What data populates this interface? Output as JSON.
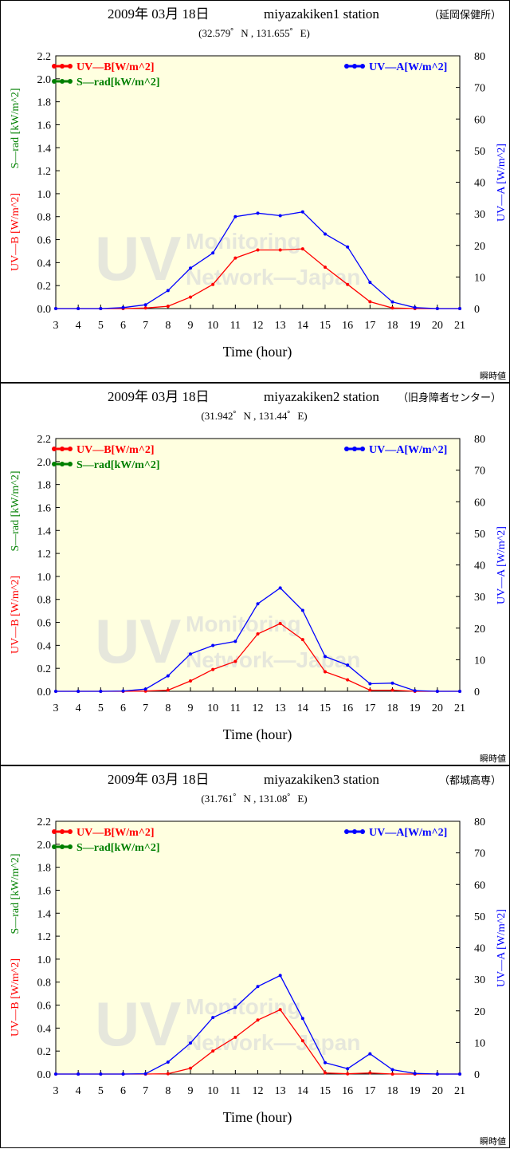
{
  "colors": {
    "uvb": "#ff0000",
    "srad": "#008000",
    "uva": "#0000ff",
    "plot_bg": "#ffffe0"
  },
  "watermark": {
    "big": "UV",
    "line1": "Monitoring",
    "line2": "Network—Japan"
  },
  "chart_data": [
    {
      "type": "line",
      "date": "2009年 03月 18日",
      "station": "miyazakiken1 station",
      "station_jp": "（延岡保健所）",
      "coords": "(32.579゜N , 131.655゜E)",
      "xlabel": "Time (hour)",
      "ylabel_left_uvb": "UV—B [W/m^2]",
      "ylabel_left_srad": "S—rad [kW/m^2]",
      "ylabel_right": "UV—A [W/m^2]",
      "legend_uvb": "UV—B[W/m^2]",
      "legend_srad": "S—rad[kW/m^2]",
      "legend_uva": "UV—A[W/m^2]",
      "footnote": "瞬時値",
      "x": [
        3,
        4,
        5,
        6,
        7,
        8,
        9,
        10,
        11,
        12,
        13,
        14,
        15,
        16,
        17,
        18,
        19,
        20,
        21
      ],
      "xlim": [
        3,
        21
      ],
      "ylim_left": [
        0,
        2.2
      ],
      "ylim_right": [
        0,
        80
      ],
      "left_ticks": [
        "0.0",
        "0.2",
        "0.4",
        "0.6",
        "0.8",
        "1.0",
        "1.2",
        "1.4",
        "1.6",
        "1.8",
        "2.0",
        "2.2"
      ],
      "right_ticks": [
        "0",
        "10",
        "20",
        "30",
        "40",
        "50",
        "60",
        "70",
        "80"
      ],
      "series": [
        {
          "name": "UV—B[W/m^2]",
          "axis": "left",
          "color": "#ff0000",
          "values": [
            0,
            0,
            0,
            0,
            0.005,
            0.02,
            0.1,
            0.21,
            0.44,
            0.51,
            0.51,
            0.52,
            0.36,
            0.21,
            0.06,
            0.005,
            0,
            0,
            0
          ]
        },
        {
          "name": "UV—A[W/m^2]",
          "axis": "right",
          "color": "#0000ff",
          "values": [
            0,
            0,
            0,
            0.3,
            1.2,
            5.7,
            12.8,
            17.6,
            29.1,
            30.2,
            29.4,
            30.6,
            23.6,
            19.5,
            8.3,
            2.1,
            0.3,
            0,
            0
          ]
        }
      ]
    },
    {
      "type": "line",
      "date": "2009年 03月 18日",
      "station": "miyazakiken2 station",
      "station_jp": "（旧身障者センター）",
      "coords": "(31.942゜N , 131.44゜E)",
      "xlabel": "Time (hour)",
      "ylabel_left_uvb": "UV—B [W/m^2]",
      "ylabel_left_srad": "S—rad [kW/m^2]",
      "ylabel_right": "UV—A [W/m^2]",
      "legend_uvb": "UV—B[W/m^2]",
      "legend_srad": "S—rad[kW/m^2]",
      "legend_uva": "UV—A[W/m^2]",
      "footnote": "瞬時値",
      "x": [
        3,
        4,
        5,
        6,
        7,
        8,
        9,
        10,
        11,
        12,
        13,
        14,
        15,
        16,
        17,
        18,
        19,
        20,
        21
      ],
      "xlim": [
        3,
        21
      ],
      "ylim_left": [
        0,
        2.2
      ],
      "ylim_right": [
        0,
        80
      ],
      "left_ticks": [
        "0.0",
        "0.2",
        "0.4",
        "0.6",
        "0.8",
        "1.0",
        "1.2",
        "1.4",
        "1.6",
        "1.8",
        "2.0",
        "2.2"
      ],
      "right_ticks": [
        "0",
        "10",
        "20",
        "30",
        "40",
        "50",
        "60",
        "70",
        "80"
      ],
      "series": [
        {
          "name": "UV—B[W/m^2]",
          "axis": "left",
          "color": "#ff0000",
          "values": [
            0,
            0,
            0,
            0,
            0.002,
            0.01,
            0.09,
            0.19,
            0.26,
            0.5,
            0.59,
            0.45,
            0.17,
            0.1,
            0.01,
            0.01,
            0,
            0,
            0
          ]
        },
        {
          "name": "UV—A[W/m^2]",
          "axis": "right",
          "color": "#0000ff",
          "values": [
            0,
            0,
            0,
            0.1,
            0.7,
            4.9,
            11.8,
            14.5,
            15.8,
            27.7,
            32.7,
            25.6,
            11.0,
            8.3,
            2.4,
            2.6,
            0.2,
            0,
            0
          ]
        }
      ]
    },
    {
      "type": "line",
      "date": "2009年 03月 18日",
      "station": "miyazakiken3 station",
      "station_jp": "（都城高専）",
      "coords": "(31.761゜N , 131.08゜E)",
      "xlabel": "Time (hour)",
      "ylabel_left_uvb": "UV—B [W/m^2]",
      "ylabel_left_srad": "S—rad [kW/m^2]",
      "ylabel_right": "UV—A [W/m^2]",
      "legend_uvb": "UV—B[W/m^2]",
      "legend_srad": "S—rad[kW/m^2]",
      "legend_uva": "UV—A[W/m^2]",
      "footnote": "瞬時値",
      "x": [
        3,
        4,
        5,
        6,
        7,
        8,
        9,
        10,
        11,
        12,
        13,
        14,
        15,
        16,
        17,
        18,
        19,
        20,
        21
      ],
      "xlim": [
        3,
        21
      ],
      "ylim_left": [
        0,
        2.2
      ],
      "ylim_right": [
        0,
        80
      ],
      "left_ticks": [
        "0.0",
        "0.2",
        "0.4",
        "0.6",
        "0.8",
        "1.0",
        "1.2",
        "1.4",
        "1.6",
        "1.8",
        "2.0",
        "2.2"
      ],
      "right_ticks": [
        "0",
        "10",
        "20",
        "30",
        "40",
        "50",
        "60",
        "70",
        "80"
      ],
      "series": [
        {
          "name": "UV—B[W/m^2]",
          "axis": "left",
          "color": "#ff0000",
          "values": [
            0,
            0,
            0,
            0,
            0,
            0.003,
            0.05,
            0.2,
            0.32,
            0.47,
            0.56,
            0.29,
            0.01,
            0.002,
            0.01,
            0,
            0,
            0,
            0
          ]
        },
        {
          "name": "UV—A[W/m^2]",
          "axis": "right",
          "color": "#0000ff",
          "values": [
            0,
            0,
            0,
            0,
            0.1,
            3.8,
            9.8,
            17.9,
            21.1,
            27.7,
            31.2,
            17.6,
            3.6,
            1.7,
            6.4,
            1.4,
            0.2,
            0,
            0
          ]
        }
      ]
    }
  ]
}
